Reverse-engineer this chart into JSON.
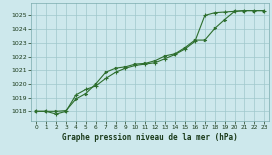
{
  "title": "Graphe pression niveau de la mer (hPa)",
  "background_color": "#cde8ec",
  "grid_color": "#a0c8cc",
  "line_color": "#2d6e2d",
  "xlim": [
    -0.5,
    23.5
  ],
  "ylim": [
    1017.3,
    1025.9
  ],
  "yticks": [
    1018,
    1019,
    1020,
    1021,
    1022,
    1023,
    1024,
    1025
  ],
  "xticks": [
    0,
    1,
    2,
    3,
    4,
    5,
    6,
    7,
    8,
    9,
    10,
    11,
    12,
    13,
    14,
    15,
    16,
    17,
    18,
    19,
    20,
    21,
    22,
    23
  ],
  "series1_x": [
    0,
    1,
    2,
    3,
    4,
    5,
    6,
    7,
    8,
    9,
    10,
    11,
    12,
    13,
    14,
    15,
    16,
    17,
    18,
    19,
    20,
    21,
    22,
    23
  ],
  "series1_y": [
    1018.0,
    1018.0,
    1017.8,
    1018.0,
    1019.2,
    1019.6,
    1019.85,
    1020.4,
    1020.85,
    1021.15,
    1021.35,
    1021.45,
    1021.55,
    1021.85,
    1022.15,
    1022.55,
    1023.1,
    1025.0,
    1025.2,
    1025.25,
    1025.3,
    1025.35,
    1025.35,
    1025.35
  ],
  "series2_x": [
    0,
    1,
    2,
    3,
    4,
    5,
    6,
    7,
    8,
    9,
    10,
    11,
    12,
    13,
    14,
    15,
    16,
    17,
    18,
    19,
    20,
    21,
    22,
    23
  ],
  "series2_y": [
    1018.0,
    1018.0,
    1018.0,
    1018.05,
    1018.9,
    1019.3,
    1020.0,
    1020.85,
    1021.15,
    1021.25,
    1021.45,
    1021.5,
    1021.7,
    1022.05,
    1022.2,
    1022.65,
    1023.2,
    1023.2,
    1024.05,
    1024.7,
    1025.3,
    1025.35,
    1025.35,
    1025.35
  ]
}
